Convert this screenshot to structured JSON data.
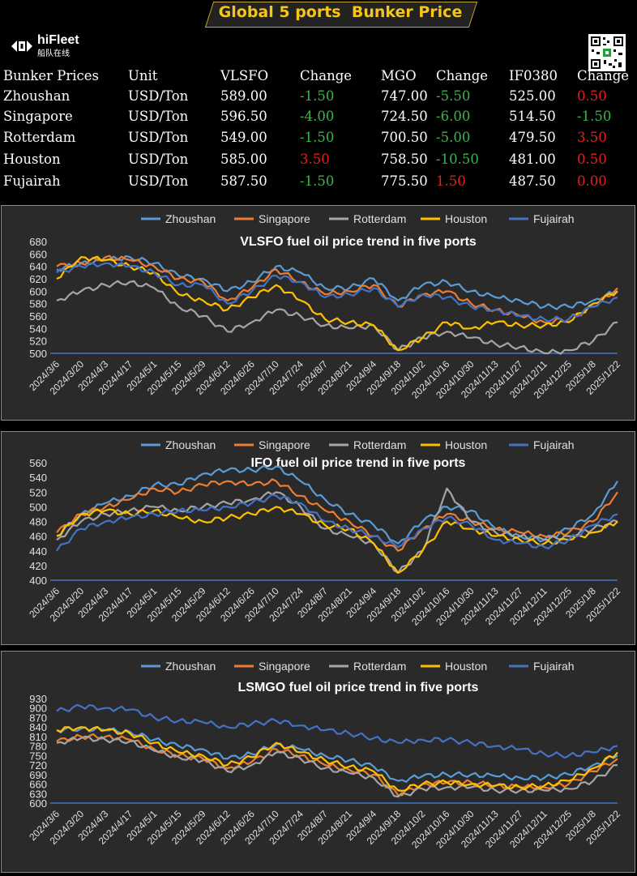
{
  "header": {
    "title": "Global 5 ports  Bunker Price"
  },
  "brand": {
    "name": "hiFleet",
    "subtitle": "船队在线"
  },
  "table": {
    "headers": [
      "Bunker Prices",
      "Unit",
      "VLSFO",
      "Change",
      "MGO",
      "Change",
      "IF0380",
      "Change"
    ],
    "rows": [
      {
        "port": "Zhoushan",
        "unit": "USD/Ton",
        "vlsfo": "589.00",
        "vlsfo_change": "-1.50",
        "mgo": "747.00",
        "mgo_change": "-5.50",
        "ifo": "525.00",
        "ifo_change": "0.50"
      },
      {
        "port": "Singapore",
        "unit": "USD/Ton",
        "vlsfo": "596.50",
        "vlsfo_change": "-4.00",
        "mgo": "724.50",
        "mgo_change": "-6.00",
        "ifo": "514.50",
        "ifo_change": "-1.50"
      },
      {
        "port": "Rotterdam",
        "unit": "USD/Ton",
        "vlsfo": "549.00",
        "vlsfo_change": "-1.50",
        "mgo": "700.50",
        "mgo_change": "-5.00",
        "ifo": "479.50",
        "ifo_change": "3.50"
      },
      {
        "port": "Houston",
        "unit": "USD/Ton",
        "vlsfo": "585.00",
        "vlsfo_change": "3.50",
        "mgo": "758.50",
        "mgo_change": "-10.50",
        "ifo": "481.00",
        "ifo_change": "0.50"
      },
      {
        "port": "Fujairah",
        "unit": "USD/Ton",
        "vlsfo": "587.50",
        "vlsfo_change": "-1.50",
        "mgo": "775.50",
        "mgo_change": "1.50",
        "ifo": "487.50",
        "ifo_change": "0.00"
      }
    ],
    "colors": {
      "negative": "#3cb44b",
      "positive": "#e02020"
    }
  },
  "chart_data": [
    {
      "type": "line",
      "title": "VLSFO fuel oil price trend in five ports",
      "ylim": [
        500,
        680
      ],
      "yticks": [
        500,
        520,
        540,
        560,
        580,
        600,
        620,
        640,
        660,
        680
      ],
      "x": [
        "2024/3/6",
        "2024/3/20",
        "2024/4/3",
        "2024/4/17",
        "2024/5/1",
        "2024/5/15",
        "2024/5/29",
        "2024/6/12",
        "2024/6/26",
        "2024/7/10",
        "2024/7/24",
        "2024/8/7",
        "2024/8/21",
        "2024/9/4",
        "2024/9/18",
        "2024/10/2",
        "2024/10/16",
        "2024/10/30",
        "2024/11/13",
        "2024/11/27",
        "2024/12/11",
        "2024/12/25",
        "2025/1/8",
        "2025/1/22"
      ],
      "legend_position": "top",
      "series": [
        {
          "name": "Zhoushan",
          "color": "#5b9bd5",
          "values": [
            635,
            645,
            650,
            655,
            645,
            625,
            620,
            600,
            615,
            640,
            630,
            605,
            605,
            620,
            585,
            610,
            615,
            600,
            590,
            585,
            575,
            575,
            585,
            600
          ]
        },
        {
          "name": "Singapore",
          "color": "#ed7d31",
          "values": [
            640,
            645,
            655,
            650,
            640,
            620,
            615,
            585,
            605,
            635,
            615,
            595,
            600,
            610,
            575,
            595,
            600,
            580,
            570,
            560,
            550,
            555,
            575,
            605
          ]
        },
        {
          "name": "Rotterdam",
          "color": "#a5a5a5",
          "values": [
            585,
            600,
            610,
            615,
            605,
            575,
            560,
            535,
            550,
            570,
            560,
            545,
            540,
            545,
            505,
            525,
            535,
            525,
            515,
            510,
            500,
            505,
            520,
            550
          ]
        },
        {
          "name": "Houston",
          "color": "#ffc000",
          "values": [
            620,
            655,
            650,
            640,
            630,
            595,
            585,
            570,
            590,
            610,
            585,
            555,
            550,
            545,
            505,
            525,
            550,
            540,
            550,
            545,
            545,
            550,
            580,
            600
          ]
        },
        {
          "name": "Fujairah",
          "color": "#4472c4",
          "values": [
            630,
            640,
            645,
            640,
            630,
            610,
            610,
            580,
            600,
            625,
            615,
            590,
            595,
            605,
            575,
            595,
            590,
            575,
            570,
            560,
            555,
            555,
            575,
            590
          ]
        }
      ]
    },
    {
      "type": "line",
      "title": "IFO fuel oil price trend in five ports",
      "ylim": [
        400,
        560
      ],
      "yticks": [
        400,
        420,
        440,
        460,
        480,
        500,
        520,
        540,
        560
      ],
      "x": [
        "2024/3/6",
        "2024/3/20",
        "2024/4/3",
        "2024/4/17",
        "2024/5/1",
        "2024/5/15",
        "2024/5/29",
        "2024/6/12",
        "2024/6/26",
        "2024/7/10",
        "2024/7/24",
        "2024/8/7",
        "2024/8/21",
        "2024/9/4",
        "2024/9/18",
        "2024/10/2",
        "2024/10/16",
        "2024/10/30",
        "2024/11/13",
        "2024/11/27",
        "2024/12/11",
        "2024/12/25",
        "2025/1/8",
        "2025/1/22"
      ],
      "legend_position": "top",
      "series": [
        {
          "name": "Zhoushan",
          "color": "#5b9bd5",
          "values": [
            460,
            490,
            505,
            515,
            530,
            530,
            545,
            550,
            550,
            555,
            535,
            510,
            490,
            475,
            450,
            480,
            500,
            495,
            470,
            460,
            455,
            470,
            490,
            535
          ]
        },
        {
          "name": "Singapore",
          "color": "#ed7d31",
          "values": [
            465,
            490,
            500,
            510,
            525,
            520,
            530,
            535,
            530,
            535,
            515,
            495,
            480,
            460,
            440,
            470,
            490,
            480,
            470,
            465,
            460,
            465,
            480,
            520
          ]
        },
        {
          "name": "Rotterdam",
          "color": "#a5a5a5",
          "values": [
            455,
            480,
            490,
            495,
            500,
            495,
            500,
            505,
            510,
            520,
            500,
            470,
            460,
            450,
            410,
            440,
            525,
            480,
            465,
            460,
            455,
            460,
            470,
            480
          ]
        },
        {
          "name": "Houston",
          "color": "#ffc000",
          "values": [
            460,
            490,
            495,
            490,
            495,
            485,
            480,
            485,
            490,
            500,
            490,
            475,
            470,
            450,
            410,
            440,
            480,
            470,
            460,
            455,
            450,
            455,
            465,
            480
          ]
        },
        {
          "name": "Fujairah",
          "color": "#4472c4",
          "values": [
            440,
            470,
            480,
            485,
            490,
            495,
            495,
            500,
            505,
            515,
            505,
            480,
            470,
            460,
            445,
            470,
            485,
            475,
            455,
            450,
            445,
            455,
            475,
            490
          ]
        }
      ]
    },
    {
      "type": "line",
      "title": "LSMGO fuel oil price trend in five ports",
      "ylim": [
        600,
        930
      ],
      "yticks": [
        600,
        630,
        660,
        690,
        720,
        750,
        780,
        810,
        840,
        870,
        900,
        930
      ],
      "x": [
        "2024/3/6",
        "2024/3/20",
        "2024/4/3",
        "2024/4/17",
        "2024/5/1",
        "2024/5/15",
        "2024/5/29",
        "2024/6/12",
        "2024/6/26",
        "2024/7/10",
        "2024/7/24",
        "2024/8/7",
        "2024/8/21",
        "2024/9/4",
        "2024/9/18",
        "2024/10/2",
        "2024/10/16",
        "2024/10/30",
        "2024/11/13",
        "2024/11/27",
        "2024/12/11",
        "2024/12/25",
        "2025/1/8",
        "2025/1/22"
      ],
      "legend_position": "top",
      "series": [
        {
          "name": "Zhoushan",
          "color": "#5b9bd5",
          "values": [
            830,
            835,
            830,
            825,
            800,
            780,
            770,
            740,
            755,
            785,
            770,
            750,
            735,
            715,
            670,
            685,
            690,
            690,
            685,
            680,
            680,
            690,
            720,
            750
          ]
        },
        {
          "name": "Singapore",
          "color": "#ed7d31",
          "values": [
            795,
            810,
            810,
            800,
            770,
            750,
            740,
            710,
            730,
            770,
            750,
            720,
            705,
            690,
            625,
            660,
            665,
            665,
            655,
            650,
            650,
            660,
            700,
            740
          ]
        },
        {
          "name": "Rotterdam",
          "color": "#a5a5a5",
          "values": [
            790,
            805,
            800,
            795,
            765,
            745,
            735,
            700,
            720,
            760,
            740,
            710,
            695,
            680,
            620,
            645,
            650,
            650,
            640,
            640,
            640,
            645,
            670,
            720
          ]
        },
        {
          "name": "Houston",
          "color": "#ffc000",
          "values": [
            830,
            840,
            830,
            820,
            790,
            760,
            750,
            720,
            745,
            790,
            760,
            735,
            715,
            700,
            640,
            660,
            665,
            660,
            655,
            650,
            655,
            670,
            710,
            760
          ]
        },
        {
          "name": "Fujairah",
          "color": "#4472c4",
          "values": [
            890,
            905,
            900,
            895,
            870,
            860,
            855,
            840,
            850,
            860,
            845,
            830,
            820,
            805,
            790,
            800,
            800,
            790,
            780,
            770,
            755,
            750,
            760,
            780
          ]
        }
      ]
    }
  ]
}
